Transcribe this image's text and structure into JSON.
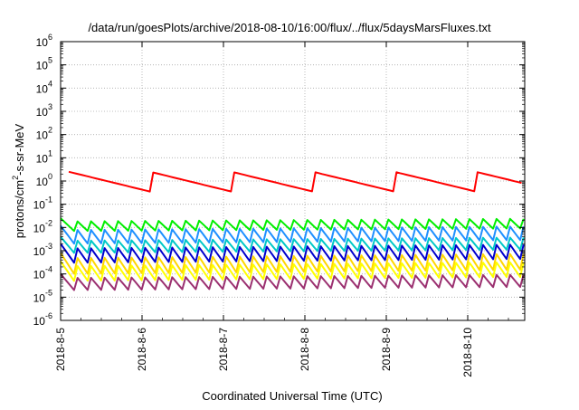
{
  "chart_data": {
    "type": "line",
    "title": "/data/run/goesPlots/archive/2018-08-10/16:00/flux/../flux/5daysMarsFluxes.txt",
    "xlabel": "Coordinated Universal Time (UTC)",
    "ylabel_parts": {
      "base": "protons/cm",
      "sup": "2",
      "rest": "-s-sr-MeV"
    },
    "y_scale": "log",
    "ylim": [
      1e-06,
      1000000.0
    ],
    "y_ticks": [
      {
        "base": "10",
        "exp": "-6",
        "value": 1e-06
      },
      {
        "base": "10",
        "exp": "-5",
        "value": 1e-05
      },
      {
        "base": "10",
        "exp": "-4",
        "value": 0.0001
      },
      {
        "base": "10",
        "exp": "-3",
        "value": 0.001
      },
      {
        "base": "10",
        "exp": "-2",
        "value": 0.01
      },
      {
        "base": "10",
        "exp": "-1",
        "value": 0.1
      },
      {
        "base": "10",
        "exp": "0",
        "value": 1
      },
      {
        "base": "10",
        "exp": "1",
        "value": 10
      },
      {
        "base": "10",
        "exp": "2",
        "value": 100
      },
      {
        "base": "10",
        "exp": "3",
        "value": 1000
      },
      {
        "base": "10",
        "exp": "4",
        "value": 10000
      },
      {
        "base": "10",
        "exp": "5",
        "value": 100000
      },
      {
        "base": "10",
        "exp": "6",
        "value": 1000000
      }
    ],
    "xlim_days": [
      0,
      5.7
    ],
    "x_ticks": [
      {
        "label": "2018-8-5",
        "day": 0
      },
      {
        "label": "2018-8-6",
        "day": 1
      },
      {
        "label": "2018-8-7",
        "day": 2
      },
      {
        "label": "2018-8-8",
        "day": 3
      },
      {
        "label": "2018-8-9",
        "day": 4
      },
      {
        "label": "2018-8-10",
        "day": 5
      }
    ],
    "grid": true,
    "legend": "none",
    "series": [
      {
        "color": "#ff0000",
        "sawtooth": {
          "start_day": 0.1,
          "end_day": 5.7,
          "step_days": 0.083,
          "period_days": 1.0,
          "high": 2.5,
          "low": 0.35
        }
      },
      {
        "color": "#00ee00",
        "sawtooth": {
          "start_day": 0.0,
          "end_day": 5.7,
          "step_days": 0.083,
          "period_days": 0.167,
          "high": 0.025,
          "low": 0.007
        }
      },
      {
        "color": "#1e90ff",
        "sawtooth": {
          "start_day": 0.0,
          "end_day": 5.7,
          "step_days": 0.083,
          "period_days": 0.167,
          "high": 0.012,
          "low": 0.002
        }
      },
      {
        "color": "#00c8c8",
        "sawtooth": {
          "start_day": 0.0,
          "end_day": 5.7,
          "step_days": 0.083,
          "period_days": 0.167,
          "high": 0.004,
          "low": 0.0008
        }
      },
      {
        "color": "#0000cd",
        "sawtooth": {
          "start_day": 0.0,
          "end_day": 5.7,
          "step_days": 0.083,
          "period_days": 0.167,
          "high": 0.002,
          "low": 0.0003
        }
      },
      {
        "color": "#ffd700",
        "sawtooth": {
          "start_day": 0.0,
          "end_day": 5.7,
          "step_days": 0.083,
          "period_days": 0.167,
          "high": 0.0008,
          "low": 0.0001
        }
      },
      {
        "color": "#ffff00",
        "sawtooth": {
          "start_day": 0.0,
          "end_day": 5.7,
          "step_days": 0.083,
          "period_days": 0.167,
          "high": 0.00035,
          "low": 5e-05
        }
      },
      {
        "color": "#9b3070",
        "sawtooth": {
          "start_day": 0.0,
          "end_day": 5.7,
          "step_days": 0.083,
          "period_days": 0.167,
          "high": 0.0001,
          "low": 2e-05
        }
      }
    ]
  }
}
